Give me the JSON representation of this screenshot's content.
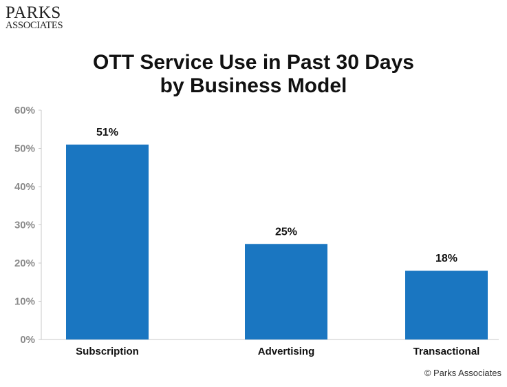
{
  "logo": {
    "line1": "PARKS",
    "line2": "ASSOCIATES"
  },
  "title_line1": "OTT Service Use in Past 30 Days",
  "title_line2": "by Business Model",
  "copyright": "© Parks Associates",
  "chart_data": {
    "type": "bar",
    "title": "OTT Service Use in Past 30 Days by Business Model",
    "categories": [
      "Subscription",
      "Advertising",
      "Transactional"
    ],
    "values": [
      51,
      25,
      18
    ],
    "data_labels": [
      "51%",
      "25%",
      "18%"
    ],
    "ylim": [
      0,
      60
    ],
    "yticks": [
      0,
      10,
      20,
      30,
      40,
      50,
      60
    ],
    "ytick_labels": [
      "0%",
      "10%",
      "20%",
      "30%",
      "40%",
      "50%",
      "60%"
    ],
    "xlabel": "",
    "ylabel": "",
    "grid": false,
    "legend": "none",
    "bar_color": "#1a76c1"
  }
}
